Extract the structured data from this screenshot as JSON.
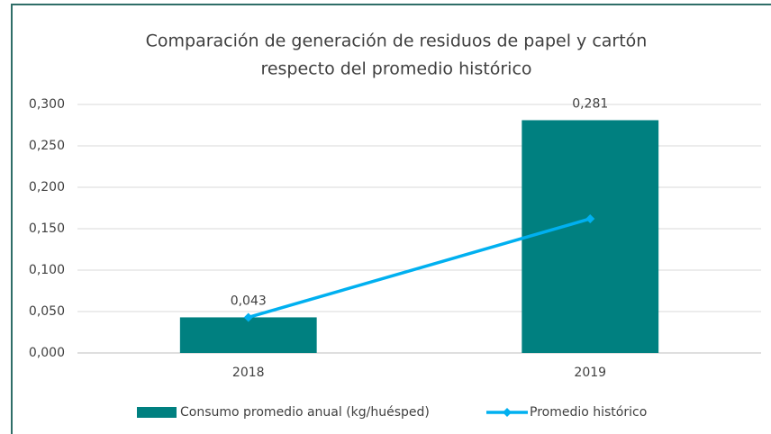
{
  "chart_data": {
    "type": "combo",
    "title": [
      "Comparación de generación de residuos de papel y cartón",
      "respecto del promedio histórico"
    ],
    "categories": [
      "2018",
      "2019"
    ],
    "series": [
      {
        "name": "Consumo promedio anual (kg/huésped)",
        "type": "bar",
        "color": "#008080",
        "values": [
          0.043,
          0.281
        ],
        "value_labels": [
          "0,043",
          "0,281"
        ]
      },
      {
        "name": "Promedio histórico",
        "type": "line",
        "color": "#00b0f0",
        "values": [
          0.043,
          0.162
        ]
      }
    ],
    "ylim": [
      0,
      0.3
    ],
    "yticks": [
      {
        "value": 0,
        "label": "0,000"
      },
      {
        "value": 0.05,
        "label": "0,050"
      },
      {
        "value": 0.1,
        "label": "0,100"
      },
      {
        "value": 0.15,
        "label": "0,150"
      },
      {
        "value": 0.2,
        "label": "0,200"
      },
      {
        "value": 0.25,
        "label": "0,250"
      },
      {
        "value": 0.3,
        "label": "0,300"
      }
    ],
    "grid": true,
    "legend": "bottom"
  }
}
